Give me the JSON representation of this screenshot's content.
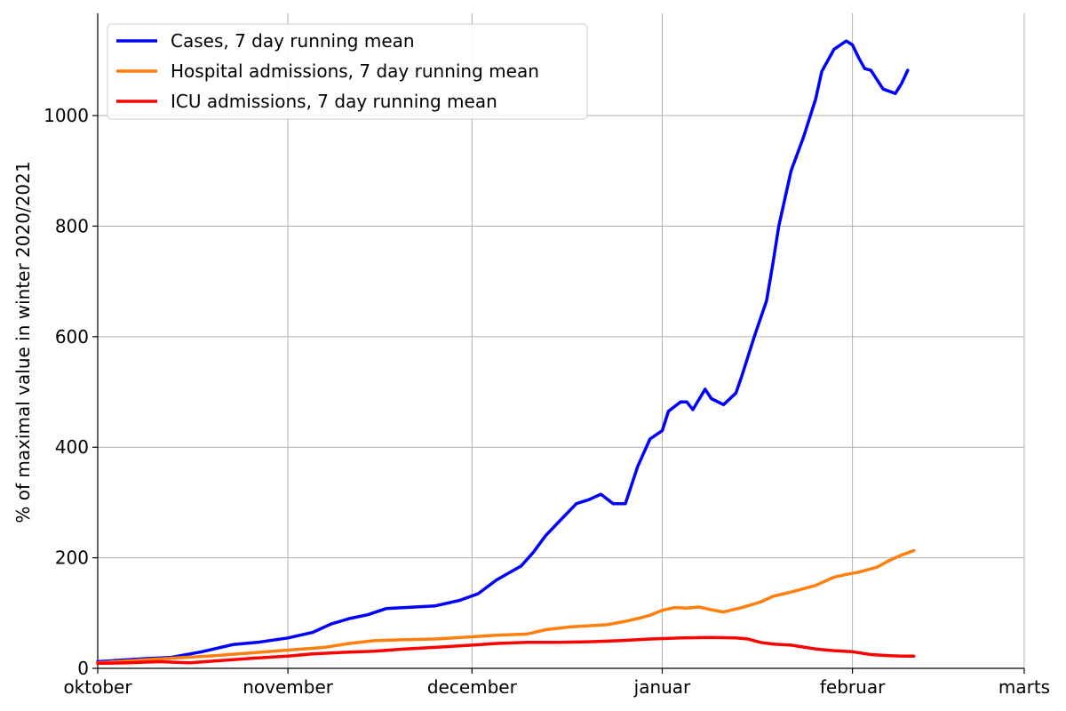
{
  "chart_data": {
    "type": "line",
    "title": "",
    "xlabel": "",
    "ylabel": "% of maximal value in winter 2020/2021",
    "xlim": [
      0,
      151
    ],
    "ylim": [
      0,
      1185
    ],
    "grid": true,
    "legend_position": "top-left",
    "x_ticks": [
      {
        "value": 0,
        "label": "oktober"
      },
      {
        "value": 31,
        "label": "november"
      },
      {
        "value": 61,
        "label": "december"
      },
      {
        "value": 92,
        "label": "januar"
      },
      {
        "value": 123,
        "label": "februar"
      },
      {
        "value": 151,
        "label": "marts"
      }
    ],
    "y_ticks": [
      0,
      200,
      400,
      600,
      800,
      1000
    ],
    "series": [
      {
        "name": "Cases, 7 day running mean",
        "color": "#0000ff",
        "points": [
          [
            0,
            12
          ],
          [
            7,
            17
          ],
          [
            12,
            20
          ],
          [
            17,
            30
          ],
          [
            22,
            43
          ],
          [
            26,
            47
          ],
          [
            31,
            55
          ],
          [
            35,
            65
          ],
          [
            38,
            80
          ],
          [
            41,
            90
          ],
          [
            44,
            97
          ],
          [
            47,
            108
          ],
          [
            50,
            110
          ],
          [
            55,
            113
          ],
          [
            59,
            123
          ],
          [
            62,
            135
          ],
          [
            65,
            160
          ],
          [
            69,
            185
          ],
          [
            71,
            210
          ],
          [
            73,
            240
          ],
          [
            76,
            275
          ],
          [
            78,
            298
          ],
          [
            80,
            305
          ],
          [
            82,
            315
          ],
          [
            84,
            298
          ],
          [
            86,
            298
          ],
          [
            88,
            365
          ],
          [
            90,
            415
          ],
          [
            92,
            430
          ],
          [
            93,
            465
          ],
          [
            95,
            482
          ],
          [
            96,
            482
          ],
          [
            97,
            468
          ],
          [
            99,
            505
          ],
          [
            100,
            488
          ],
          [
            102,
            477
          ],
          [
            104,
            498
          ],
          [
            105,
            530
          ],
          [
            107,
            600
          ],
          [
            109,
            665
          ],
          [
            110,
            730
          ],
          [
            111,
            800
          ],
          [
            113,
            900
          ],
          [
            115,
            960
          ],
          [
            117,
            1030
          ],
          [
            118,
            1080
          ],
          [
            120,
            1120
          ],
          [
            122,
            1135
          ],
          [
            123,
            1128
          ],
          [
            124,
            1105
          ],
          [
            125,
            1085
          ],
          [
            126,
            1082
          ],
          [
            127,
            1065
          ],
          [
            128,
            1048
          ],
          [
            130,
            1040
          ],
          [
            131,
            1058
          ],
          [
            132,
            1082
          ]
        ]
      },
      {
        "name": "Hospital admissions, 7 day running mean",
        "color": "#ff7f0e",
        "points": [
          [
            0,
            10
          ],
          [
            10,
            17
          ],
          [
            18,
            22
          ],
          [
            25,
            28
          ],
          [
            31,
            33
          ],
          [
            37,
            38
          ],
          [
            41,
            45
          ],
          [
            45,
            50
          ],
          [
            50,
            52
          ],
          [
            55,
            53
          ],
          [
            61,
            57
          ],
          [
            65,
            60
          ],
          [
            70,
            62
          ],
          [
            73,
            70
          ],
          [
            77,
            75
          ],
          [
            80,
            77
          ],
          [
            83,
            79
          ],
          [
            86,
            85
          ],
          [
            88,
            90
          ],
          [
            90,
            96
          ],
          [
            92,
            105
          ],
          [
            94,
            110
          ],
          [
            96,
            109
          ],
          [
            98,
            111
          ],
          [
            100,
            106
          ],
          [
            102,
            102
          ],
          [
            105,
            110
          ],
          [
            108,
            120
          ],
          [
            110,
            130
          ],
          [
            113,
            138
          ],
          [
            117,
            150
          ],
          [
            120,
            165
          ],
          [
            122,
            170
          ],
          [
            124,
            174
          ],
          [
            127,
            183
          ],
          [
            129,
            195
          ],
          [
            131,
            205
          ],
          [
            133,
            213
          ]
        ]
      },
      {
        "name": "ICU admissions, 7 day running mean",
        "color": "#ff0000",
        "points": [
          [
            0,
            9
          ],
          [
            5,
            10
          ],
          [
            10,
            12
          ],
          [
            15,
            10
          ],
          [
            20,
            14
          ],
          [
            25,
            18
          ],
          [
            31,
            22
          ],
          [
            35,
            26
          ],
          [
            40,
            29
          ],
          [
            45,
            31
          ],
          [
            50,
            35
          ],
          [
            55,
            38
          ],
          [
            61,
            42
          ],
          [
            65,
            45
          ],
          [
            70,
            47
          ],
          [
            75,
            47
          ],
          [
            80,
            48
          ],
          [
            85,
            50
          ],
          [
            90,
            53
          ],
          [
            95,
            55
          ],
          [
            100,
            56
          ],
          [
            104,
            55
          ],
          [
            106,
            53
          ],
          [
            108,
            47
          ],
          [
            110,
            44
          ],
          [
            113,
            42
          ],
          [
            117,
            35
          ],
          [
            120,
            32
          ],
          [
            123,
            30
          ],
          [
            126,
            25
          ],
          [
            129,
            23
          ],
          [
            131,
            22
          ],
          [
            133,
            22
          ]
        ]
      }
    ]
  }
}
